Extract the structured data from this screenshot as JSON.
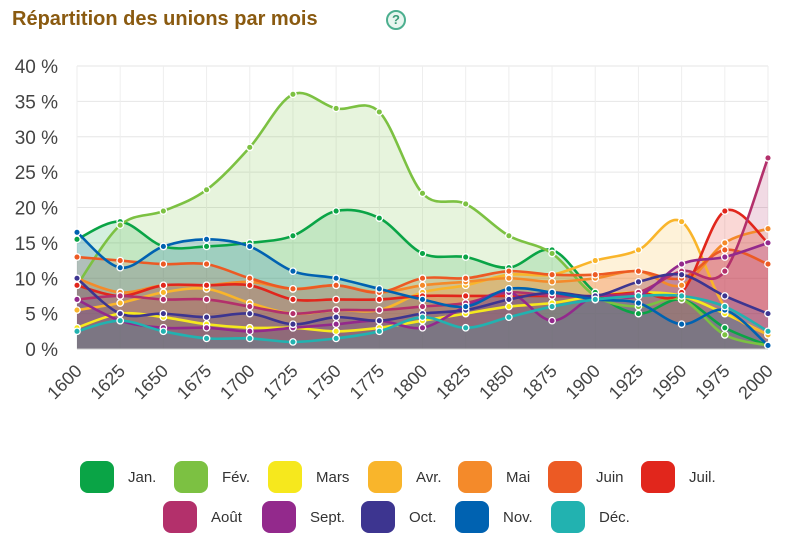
{
  "header": {
    "title": "Répartition des unions par mois",
    "help_icon": "?"
  },
  "colors": {
    "Jan.": "#0aa446",
    "Fév.": "#7cc142",
    "Mars": "#f6e81d",
    "Avr.": "#f9b52b",
    "Mai": "#f48a2a",
    "Juin": "#ec5a24",
    "Juil.": "#e1261c",
    "Août": "#b3306b",
    "Sept.": "#93298c",
    "Oct.": "#3d3590",
    "Nov.": "#0062b1",
    "Déc.": "#22b2b0"
  },
  "chart_data": {
    "type": "area",
    "title": "Répartition des unions par mois",
    "x": [
      1600,
      1625,
      1650,
      1675,
      1700,
      1725,
      1750,
      1775,
      1800,
      1825,
      1850,
      1875,
      1900,
      1925,
      1950,
      1975,
      2000
    ],
    "xticks": [
      "1600",
      "1625",
      "1650",
      "1675",
      "1700",
      "1725",
      "1750",
      "1775",
      "1800",
      "1825",
      "1850",
      "1875",
      "1900",
      "1925",
      "1950",
      "1975",
      "2000"
    ],
    "ylim": [
      0,
      40
    ],
    "yticks": [
      "0 %",
      "5 %",
      "10 %",
      "15 %",
      "20 %",
      "25 %",
      "30 %",
      "35 %",
      "40 %"
    ],
    "ytick_values": [
      0,
      5,
      10,
      15,
      20,
      25,
      30,
      35,
      40
    ],
    "grid": true,
    "legend_position": "bottom",
    "series": [
      {
        "name": "Jan.",
        "values": [
          15.5,
          18,
          14.5,
          14.5,
          15,
          16,
          19.5,
          18.5,
          13.5,
          13,
          11.5,
          14,
          8,
          5,
          7,
          3,
          0.5
        ]
      },
      {
        "name": "Fév.",
        "values": [
          9,
          17.5,
          19.5,
          22.5,
          28.5,
          36,
          34,
          33.5,
          22,
          20.5,
          16,
          13.5,
          7.5,
          6,
          7,
          2,
          0.5
        ]
      },
      {
        "name": "Mars",
        "values": [
          3,
          5,
          4.5,
          3.5,
          3,
          3,
          2.5,
          3,
          4,
          5,
          6,
          6.5,
          7.5,
          8,
          7.5,
          5,
          2
        ]
      },
      {
        "name": "Avr.",
        "values": [
          5.5,
          6.5,
          8,
          8.5,
          6.5,
          5,
          5.5,
          5.5,
          8,
          9,
          10.5,
          10.5,
          12.5,
          14,
          18,
          6,
          2
        ]
      },
      {
        "name": "Mai",
        "values": [
          10,
          8,
          9,
          9,
          9.5,
          8.5,
          9,
          8,
          9,
          9.5,
          10,
          9.5,
          10,
          11,
          9,
          15,
          17
        ]
      },
      {
        "name": "Juin",
        "values": [
          13,
          12.5,
          12,
          12,
          10,
          8.5,
          9,
          8,
          10,
          10,
          11,
          10.5,
          10.5,
          11,
          10,
          14,
          12
        ]
      },
      {
        "name": "Juil.",
        "values": [
          9,
          7.5,
          9,
          9,
          9,
          7,
          7,
          7,
          7.5,
          7.5,
          7.5,
          7.5,
          7.5,
          8,
          8,
          19.5,
          15
        ]
      },
      {
        "name": "Août",
        "values": [
          7,
          7.5,
          7,
          7,
          6,
          5,
          5.5,
          5.5,
          6,
          6.5,
          8,
          7.5,
          7.5,
          8,
          11,
          11,
          27
        ]
      },
      {
        "name": "Sept.",
        "values": [
          7,
          4,
          3,
          3,
          2.5,
          3,
          3.5,
          4,
          3,
          6,
          8,
          4,
          7.5,
          7.5,
          12,
          13,
          15
        ]
      },
      {
        "name": "Oct.",
        "values": [
          10,
          5,
          5,
          4.5,
          5,
          3.5,
          4.5,
          4,
          5,
          5.5,
          7,
          8,
          7.5,
          9.5,
          10.5,
          7.5,
          5
        ]
      },
      {
        "name": "Nov.",
        "values": [
          16.5,
          11.5,
          14.5,
          15.5,
          14.5,
          11,
          10,
          8.5,
          7,
          6,
          8.5,
          8,
          7,
          6.5,
          3.5,
          5.5,
          0.5
        ]
      },
      {
        "name": "Déc.",
        "values": [
          2.5,
          4,
          2.5,
          1.5,
          1.5,
          1,
          1.5,
          2.5,
          4.5,
          3,
          4.5,
          6,
          7,
          7.5,
          7.5,
          6,
          2.5
        ]
      }
    ]
  },
  "legend": {
    "items": [
      "Jan.",
      "Fév.",
      "Mars",
      "Avr.",
      "Mai",
      "Juin",
      "Juil.",
      "Août",
      "Sept.",
      "Oct.",
      "Nov.",
      "Déc."
    ]
  }
}
